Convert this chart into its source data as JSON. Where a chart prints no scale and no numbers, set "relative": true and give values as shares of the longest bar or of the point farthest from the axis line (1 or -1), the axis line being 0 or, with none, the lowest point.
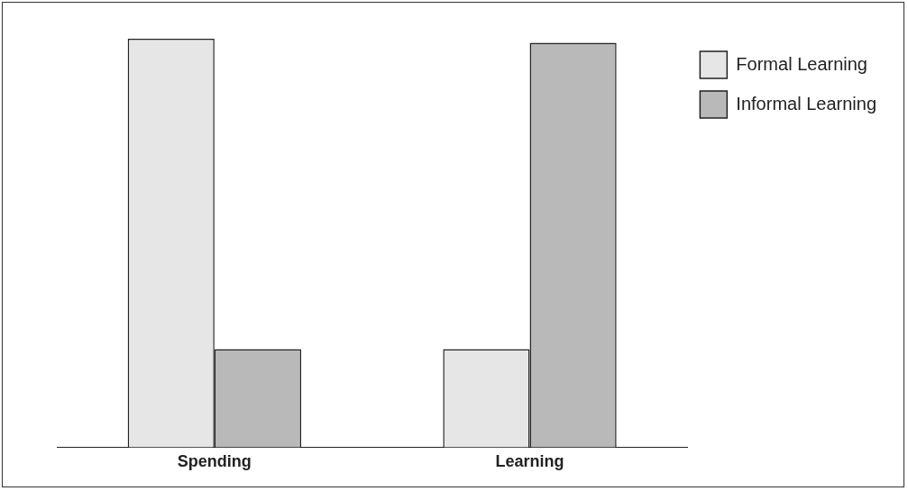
{
  "chart_data": {
    "type": "bar",
    "relative": true,
    "categories": [
      "Spending",
      "Learning"
    ],
    "series": [
      {
        "name": "Formal Learning",
        "color": "#e6e6e6",
        "values": [
          1,
          0.24
        ]
      },
      {
        "name": "Informal Learning",
        "color": "#b9b9b9",
        "values": [
          0.24,
          0.99
        ]
      }
    ],
    "legend": "right"
  }
}
